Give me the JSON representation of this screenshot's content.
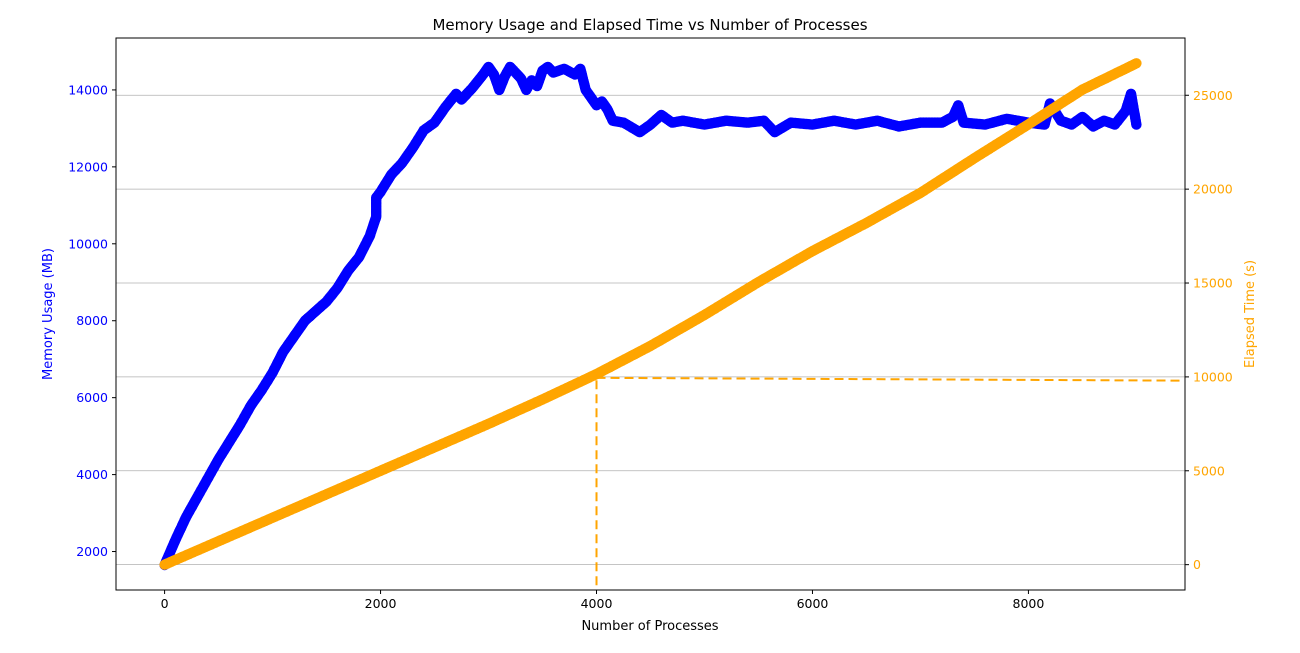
{
  "chart_data": {
    "type": "scatter",
    "title": "Memory Usage and Elapsed Time vs Number of Processes",
    "xlabel": "Number of Processes",
    "ylabel_left": "Memory Usage (MB)",
    "ylabel_right": "Elapsed Time (s)",
    "xlim": [
      -450,
      9450
    ],
    "ylim_left": [
      1000,
      15350
    ],
    "ylim_right": [
      -1350,
      28050
    ],
    "x_ticks": [
      0,
      2000,
      4000,
      6000,
      8000
    ],
    "y_ticks_left": [
      2000,
      4000,
      6000,
      8000,
      10000,
      12000,
      14000
    ],
    "y_ticks_right": [
      0,
      5000,
      10000,
      15000,
      20000,
      25000
    ],
    "grid": "horizontal-right-axis",
    "colors": {
      "memory": "#0000ff",
      "elapsed": "#ffa500",
      "grid": "#b0b0b0",
      "axis": "#000000"
    },
    "series": [
      {
        "axis": "left",
        "color": "#0000ff",
        "points": [
          [
            0,
            1650
          ],
          [
            100,
            2300
          ],
          [
            200,
            2900
          ],
          [
            300,
            3400
          ],
          [
            400,
            3900
          ],
          [
            500,
            4400
          ],
          [
            600,
            4850
          ],
          [
            700,
            5300
          ],
          [
            800,
            5800
          ],
          [
            900,
            6200
          ],
          [
            1000,
            6650
          ],
          [
            1100,
            7200
          ],
          [
            1200,
            7600
          ],
          [
            1300,
            8000
          ],
          [
            1400,
            8250
          ],
          [
            1500,
            8500
          ],
          [
            1600,
            8850
          ],
          [
            1700,
            9300
          ],
          [
            1800,
            9650
          ],
          [
            1900,
            10200
          ],
          [
            1960,
            10700
          ],
          [
            1960,
            11200
          ],
          [
            2000,
            11350
          ],
          [
            2100,
            11800
          ],
          [
            2200,
            12100
          ],
          [
            2300,
            12500
          ],
          [
            2400,
            12950
          ],
          [
            2500,
            13150
          ],
          [
            2600,
            13550
          ],
          [
            2700,
            13900
          ],
          [
            2750,
            13750
          ],
          [
            2850,
            14050
          ],
          [
            2950,
            14400
          ],
          [
            3000,
            14600
          ],
          [
            3050,
            14400
          ],
          [
            3100,
            14000
          ],
          [
            3150,
            14350
          ],
          [
            3200,
            14600
          ],
          [
            3300,
            14300
          ],
          [
            3350,
            14000
          ],
          [
            3400,
            14250
          ],
          [
            3450,
            14100
          ],
          [
            3500,
            14500
          ],
          [
            3550,
            14600
          ],
          [
            3600,
            14450
          ],
          [
            3700,
            14550
          ],
          [
            3800,
            14400
          ],
          [
            3850,
            14550
          ],
          [
            3900,
            14000
          ],
          [
            3950,
            13800
          ],
          [
            4000,
            13600
          ],
          [
            4050,
            13700
          ],
          [
            4100,
            13500
          ],
          [
            4150,
            13200
          ],
          [
            4250,
            13150
          ],
          [
            4400,
            12900
          ],
          [
            4500,
            13100
          ],
          [
            4600,
            13350
          ],
          [
            4700,
            13150
          ],
          [
            4800,
            13200
          ],
          [
            5000,
            13100
          ],
          [
            5200,
            13200
          ],
          [
            5400,
            13150
          ],
          [
            5550,
            13200
          ],
          [
            5650,
            12900
          ],
          [
            5800,
            13150
          ],
          [
            6000,
            13100
          ],
          [
            6200,
            13200
          ],
          [
            6400,
            13100
          ],
          [
            6600,
            13200
          ],
          [
            6800,
            13050
          ],
          [
            7000,
            13150
          ],
          [
            7200,
            13150
          ],
          [
            7300,
            13300
          ],
          [
            7350,
            13600
          ],
          [
            7400,
            13150
          ],
          [
            7600,
            13100
          ],
          [
            7800,
            13250
          ],
          [
            8000,
            13150
          ],
          [
            8150,
            13100
          ],
          [
            8200,
            13650
          ],
          [
            8300,
            13200
          ],
          [
            8400,
            13100
          ],
          [
            8500,
            13300
          ],
          [
            8600,
            13050
          ],
          [
            8700,
            13200
          ],
          [
            8800,
            13100
          ],
          [
            8900,
            13450
          ],
          [
            8950,
            13900
          ],
          [
            9000,
            13100
          ]
        ]
      },
      {
        "axis": "right",
        "color": "#ffa500",
        "points": [
          [
            0,
            0
          ],
          [
            500,
            1250
          ],
          [
            1000,
            2500
          ],
          [
            1500,
            3750
          ],
          [
            2000,
            5000
          ],
          [
            2500,
            6250
          ],
          [
            3000,
            7500
          ],
          [
            3500,
            8800
          ],
          [
            4000,
            10150
          ],
          [
            4500,
            11650
          ],
          [
            5000,
            13300
          ],
          [
            5500,
            15050
          ],
          [
            6000,
            16700
          ],
          [
            6500,
            18200
          ],
          [
            7000,
            19800
          ],
          [
            7500,
            21650
          ],
          [
            8000,
            23450
          ],
          [
            8500,
            25300
          ],
          [
            9000,
            26700
          ]
        ]
      }
    ],
    "annotations": [
      {
        "type": "dashed-line",
        "axis": "right",
        "color": "#ffa500",
        "points": [
          [
            4000,
            -1100
          ],
          [
            4000,
            9950
          ]
        ]
      },
      {
        "type": "dashed-line",
        "axis": "right",
        "color": "#ffa500",
        "points": [
          [
            4000,
            9950
          ],
          [
            9450,
            9800
          ]
        ]
      }
    ]
  }
}
